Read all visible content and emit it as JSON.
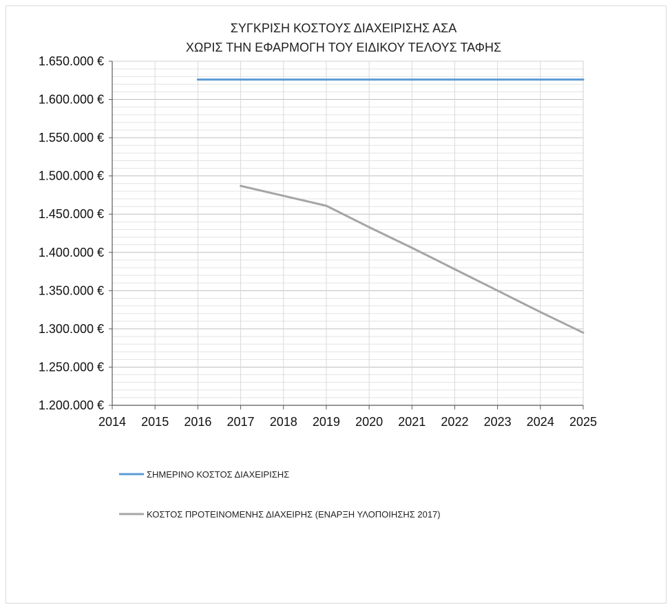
{
  "chart_data": {
    "type": "line",
    "title": [
      "ΣΥΓΚΡΙΣΗ ΚΟΣΤΟΥΣ ΔΙΑΧΕΙΡΙΣΗΣ ΑΣΑ",
      "ΧΩΡΙΣ ΤΗΝ ΕΦΑΡΜΟΓΗ ΤΟΥ ΕΙΔΙΚΟΥ ΤΕΛΟΥΣ ΤΑΦΗΣ"
    ],
    "xlabel": "",
    "ylabel": "",
    "x_ticks": [
      "2014",
      "2015",
      "2016",
      "2017",
      "2018",
      "2019",
      "2020",
      "2021",
      "2022",
      "2023",
      "2024",
      "2025"
    ],
    "y_ticks": [
      "1.200.000 €",
      "1.250.000 €",
      "1.300.000 €",
      "1.350.000 €",
      "1.400.000 €",
      "1.450.000 €",
      "1.500.000 €",
      "1.550.000 €",
      "1.600.000 €",
      "1.650.000 €"
    ],
    "xlim": [
      2014,
      2025
    ],
    "ylim": [
      1200000,
      1650000
    ],
    "y_minor_step": 10000,
    "grid": true,
    "legend_position": "bottom",
    "series": [
      {
        "name": "ΣΗΜΕΡΙΝΟ ΚΟΣΤΟΣ ΔΙΑΧΕΙΡΙΣΗΣ",
        "color": "#5b9bd5",
        "points": [
          [
            2016,
            1626000
          ],
          [
            2025,
            1626000
          ]
        ]
      },
      {
        "name": "ΚΟΣΤΟΣ ΠΡΟΤΕΙΝΟΜΕΝΗΣ ΔΙΑΧΕΙΡΗΣ (ΕΝΑΡΞΗ ΥΛΟΠΟΙΗΣΗΣ 2017)",
        "color": "#a5a5a5",
        "points": [
          [
            2017,
            1487000
          ],
          [
            2018,
            1474000
          ],
          [
            2019,
            1461000
          ],
          [
            2020,
            1433000
          ],
          [
            2021,
            1406000
          ],
          [
            2022,
            1378000
          ],
          [
            2023,
            1350000
          ],
          [
            2024,
            1322000
          ],
          [
            2025,
            1295000
          ]
        ]
      }
    ]
  }
}
